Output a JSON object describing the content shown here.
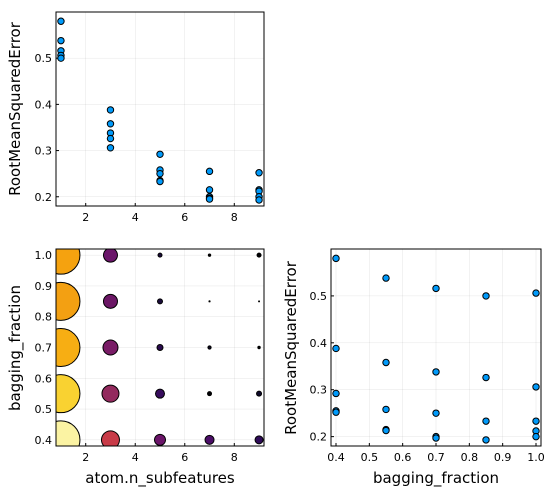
{
  "chart_data": [
    {
      "id": "top_left",
      "type": "scatter",
      "title": "",
      "xlabel": "",
      "ylabel": "RootMeanSquaredError",
      "xlim": [
        0.8,
        9.2
      ],
      "ylim": [
        0.18,
        0.6
      ],
      "xticks": [
        2,
        4,
        6,
        8
      ],
      "yticks": [
        0.2,
        0.3,
        0.4,
        0.5
      ],
      "ytick_labels": [
        "0.2",
        "0.3",
        "0.4",
        "0.5"
      ],
      "grid": true,
      "color": "#009AFA",
      "points": [
        {
          "x": 1,
          "y": 0.58
        },
        {
          "x": 1,
          "y": 0.538
        },
        {
          "x": 1,
          "y": 0.516
        },
        {
          "x": 1,
          "y": 0.506
        },
        {
          "x": 1,
          "y": 0.5
        },
        {
          "x": 3,
          "y": 0.388
        },
        {
          "x": 3,
          "y": 0.358
        },
        {
          "x": 3,
          "y": 0.338
        },
        {
          "x": 3,
          "y": 0.326
        },
        {
          "x": 3,
          "y": 0.306
        },
        {
          "x": 5,
          "y": 0.292
        },
        {
          "x": 5,
          "y": 0.258
        },
        {
          "x": 5,
          "y": 0.25
        },
        {
          "x": 5,
          "y": 0.235
        },
        {
          "x": 5,
          "y": 0.233
        },
        {
          "x": 7,
          "y": 0.255
        },
        {
          "x": 7,
          "y": 0.215
        },
        {
          "x": 7,
          "y": 0.2
        },
        {
          "x": 7,
          "y": 0.197
        },
        {
          "x": 7,
          "y": 0.195
        },
        {
          "x": 9,
          "y": 0.252
        },
        {
          "x": 9,
          "y": 0.215
        },
        {
          "x": 9,
          "y": 0.212
        },
        {
          "x": 9,
          "y": 0.2
        },
        {
          "x": 9,
          "y": 0.193
        }
      ]
    },
    {
      "id": "bottom_left",
      "type": "scatter",
      "title": "",
      "xlabel": "atom.n_subfeatures",
      "ylabel": "bagging_fraction",
      "xlim": [
        0.8,
        9.2
      ],
      "ylim": [
        0.38,
        1.02
      ],
      "xticks": [
        2,
        4,
        6,
        8
      ],
      "yticks": [
        0.4,
        0.5,
        0.6,
        0.7,
        0.8,
        0.9,
        1.0
      ],
      "ytick_labels": [
        "0.4",
        "0.5",
        "0.6",
        "0.7",
        "0.8",
        "0.9",
        "1.0"
      ],
      "grid": true,
      "note_encoding": "marker size and color encode RootMeanSquaredError",
      "points": [
        {
          "x": 1,
          "y": 1.0,
          "size": 19,
          "color": "#F5A20F"
        },
        {
          "x": 1,
          "y": 0.85,
          "size": 19,
          "color": "#F3A012"
        },
        {
          "x": 1,
          "y": 0.7,
          "size": 19,
          "color": "#F7AE13"
        },
        {
          "x": 1,
          "y": 0.55,
          "size": 19,
          "color": "#F9D231"
        },
        {
          "x": 1,
          "y": 0.4,
          "size": 19,
          "color": "#FBF3A3"
        },
        {
          "x": 3,
          "y": 1.0,
          "size": 7,
          "color": "#6A1569"
        },
        {
          "x": 3,
          "y": 0.85,
          "size": 7,
          "color": "#6B1665"
        },
        {
          "x": 3,
          "y": 0.7,
          "size": 7.5,
          "color": "#791C66"
        },
        {
          "x": 3,
          "y": 0.55,
          "size": 8.5,
          "color": "#932A5E"
        },
        {
          "x": 3,
          "y": 0.4,
          "size": 9,
          "color": "#C83B48"
        },
        {
          "x": 5,
          "y": 1.0,
          "size": 2,
          "color": "#1A0C3A"
        },
        {
          "x": 5,
          "y": 0.85,
          "size": 2.5,
          "color": "#1A0C3A"
        },
        {
          "x": 5,
          "y": 0.7,
          "size": 3,
          "color": "#2A0B4E"
        },
        {
          "x": 5,
          "y": 0.55,
          "size": 4.5,
          "color": "#370C5C"
        },
        {
          "x": 5,
          "y": 0.4,
          "size": 5.5,
          "color": "#6B1569"
        },
        {
          "x": 7,
          "y": 1.0,
          "size": 1.2,
          "color": "#000004"
        },
        {
          "x": 7,
          "y": 0.85,
          "size": 0.6,
          "color": "#000004"
        },
        {
          "x": 7,
          "y": 0.7,
          "size": 1.6,
          "color": "#0B0722"
        },
        {
          "x": 7,
          "y": 0.55,
          "size": 2,
          "color": "#000004"
        },
        {
          "x": 7,
          "y": 0.4,
          "size": 4.5,
          "color": "#4B0E67"
        },
        {
          "x": 9,
          "y": 1.0,
          "size": 2,
          "color": "#000004"
        },
        {
          "x": 9,
          "y": 0.85,
          "size": 0.5,
          "color": "#000004"
        },
        {
          "x": 9,
          "y": 0.7,
          "size": 1.2,
          "color": "#000004"
        },
        {
          "x": 9,
          "y": 0.55,
          "size": 2.5,
          "color": "#0E0A2A"
        },
        {
          "x": 9,
          "y": 0.4,
          "size": 4,
          "color": "#2E0B57"
        }
      ]
    },
    {
      "id": "bottom_right",
      "type": "scatter",
      "title": "",
      "xlabel": "bagging_fraction",
      "ylabel": "RootMeanSquaredError",
      "xlim": [
        0.385,
        1.015
      ],
      "ylim": [
        0.18,
        0.6
      ],
      "xticks": [
        0.4,
        0.5,
        0.6,
        0.7,
        0.8,
        0.9,
        1.0
      ],
      "xtick_labels": [
        "0.4",
        "0.5",
        "0.6",
        "0.7",
        "0.8",
        "0.9",
        "1.0"
      ],
      "yticks": [
        0.2,
        0.3,
        0.4,
        0.5
      ],
      "ytick_labels": [
        "0.2",
        "0.3",
        "0.4",
        "0.5"
      ],
      "grid": true,
      "color": "#009AFA",
      "points": [
        {
          "x": 0.4,
          "y": 0.58
        },
        {
          "x": 0.4,
          "y": 0.388
        },
        {
          "x": 0.4,
          "y": 0.292
        },
        {
          "x": 0.4,
          "y": 0.255
        },
        {
          "x": 0.4,
          "y": 0.252
        },
        {
          "x": 0.55,
          "y": 0.538
        },
        {
          "x": 0.55,
          "y": 0.358
        },
        {
          "x": 0.55,
          "y": 0.258
        },
        {
          "x": 0.55,
          "y": 0.215
        },
        {
          "x": 0.55,
          "y": 0.213
        },
        {
          "x": 0.7,
          "y": 0.516
        },
        {
          "x": 0.7,
          "y": 0.338
        },
        {
          "x": 0.7,
          "y": 0.25
        },
        {
          "x": 0.7,
          "y": 0.2
        },
        {
          "x": 0.7,
          "y": 0.197
        },
        {
          "x": 0.85,
          "y": 0.5
        },
        {
          "x": 0.85,
          "y": 0.326
        },
        {
          "x": 0.85,
          "y": 0.233
        },
        {
          "x": 0.85,
          "y": 0.193
        },
        {
          "x": 1.0,
          "y": 0.506
        },
        {
          "x": 1.0,
          "y": 0.306
        },
        {
          "x": 1.0,
          "y": 0.233
        },
        {
          "x": 1.0,
          "y": 0.212
        },
        {
          "x": 1.0,
          "y": 0.2
        }
      ]
    }
  ]
}
